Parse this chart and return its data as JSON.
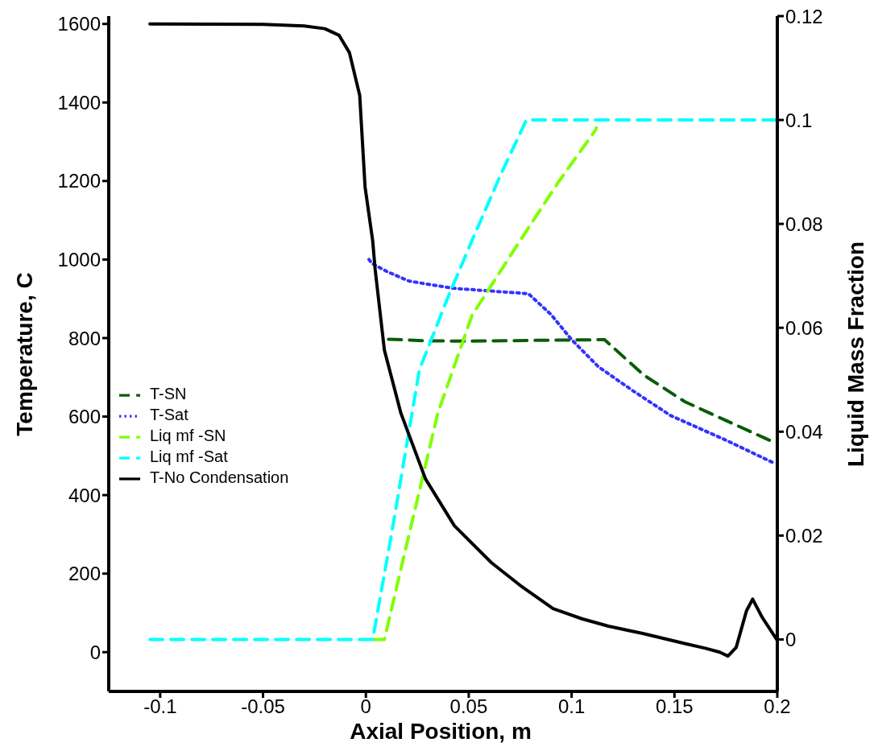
{
  "chart_data": {
    "type": "line",
    "xlabel": "Axial Position, m",
    "ylabel": "Temperature, C",
    "y2label": "Liquid Mass Fraction",
    "xlim": [
      -0.125,
      0.2
    ],
    "xticks": [
      -0.1,
      -0.05,
      0,
      0.05,
      0.1,
      0.15,
      0.2
    ],
    "ylim": [
      -100,
      1620
    ],
    "yticks": [
      0,
      200,
      400,
      600,
      800,
      1000,
      1200,
      1400,
      1600
    ],
    "y2lim": [
      -0.01,
      0.12
    ],
    "y2ticks": [
      0,
      0.02,
      0.04,
      0.06,
      0.08,
      0.1,
      0.12
    ],
    "grid": false,
    "legend": "left",
    "marker": "none",
    "series": [
      {
        "name": "T-SN",
        "color": "#0a5c0a",
        "line_style": "dashed",
        "x": [
          0.011,
          0.03,
          0.049,
          0.08,
          0.1,
          0.116,
          0.135,
          0.155,
          0.175,
          0.1965
        ],
        "values": [
          797,
          793,
          792,
          794,
          795,
          796,
          706,
          638,
          590,
          539
        ]
      },
      {
        "name": "T-Sat",
        "color": "#3333ff",
        "line_style": "dotted",
        "x": [
          0.0015,
          0.003,
          0.01,
          0.021,
          0.042,
          0.06,
          0.079,
          0.09,
          0.1,
          0.113,
          0.13,
          0.148,
          0.175,
          0.199
        ],
        "values": [
          1000,
          990,
          970,
          945,
          927,
          920,
          913,
          860,
          796,
          727,
          665,
          603,
          540,
          480
        ]
      },
      {
        "name": "Liq mf -SN",
        "color": "#80ff00",
        "line_style": "dashed",
        "axis": "y2",
        "x": [
          0.0033,
          0.009,
          0.019,
          0.035,
          0.0516,
          0.075,
          0.0935,
          0.1117,
          0.112
        ],
        "values": [
          0,
          0,
          0.0169,
          0.0436,
          0.0624,
          0.0768,
          0.088,
          0.0981,
          0.0985
        ]
      },
      {
        "name": "Liq mf -Sat",
        "color": "#00ffff",
        "line_style": "dashed",
        "axis": "y2",
        "x": [
          -0.105,
          0.0033,
          0.013,
          0.026,
          0.04,
          0.0516,
          0.065,
          0.078,
          0.2
        ],
        "values": [
          0,
          0,
          0.0215,
          0.0519,
          0.066,
          0.0768,
          0.089,
          0.1,
          0.1
        ]
      },
      {
        "name": "T-No Condensation",
        "color": "#000000",
        "line_style": "solid",
        "x": [
          -0.105,
          -0.05,
          -0.03,
          -0.02,
          -0.013,
          -0.008,
          -0.003,
          -0.0004,
          0.0033,
          0.0045,
          0.009,
          0.017,
          0.029,
          0.043,
          0.061,
          0.075,
          0.091,
          0.105,
          0.118,
          0.135,
          0.155,
          0.165,
          0.172,
          0.176,
          0.18,
          0.185,
          0.188,
          0.1925,
          0.2
        ],
        "values": [
          1600,
          1599,
          1595,
          1588,
          1571,
          1527,
          1418,
          1185,
          1048,
          975,
          769,
          609,
          441,
          322,
          228,
          170,
          111,
          85,
          66,
          47,
          22,
          10,
          0,
          -10,
          12,
          105,
          135,
          90,
          30
        ]
      }
    ]
  }
}
